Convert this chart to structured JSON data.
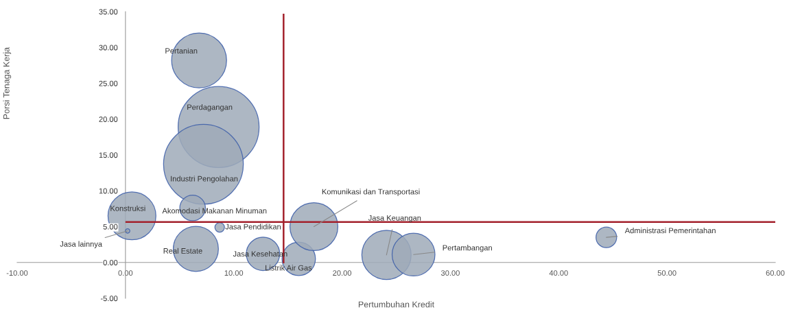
{
  "chart_data": {
    "type": "bubble",
    "xlabel": "Pertumbuhan Kredit",
    "ylabel": "Porsi Tenaga Kerja",
    "x": [
      6.8,
      8.6,
      7.2,
      6.2,
      0.6,
      0.2,
      8.7,
      6.5,
      12.7,
      16.0,
      17.4,
      24.1,
      26.6,
      44.4
    ],
    "values": [
      28.2,
      18.9,
      13.7,
      7.6,
      6.5,
      4.4,
      4.9,
      1.9,
      1.2,
      0.5,
      5.0,
      1.05,
      1.1,
      3.5
    ],
    "sizes": [
      0.46,
      1,
      0.97,
      0.1,
      0.35,
      0.003,
      0.014,
      0.31,
      0.17,
      0.17,
      0.35,
      0.37,
      0.28,
      0.065
    ],
    "value_labels": [
      "Pertanian",
      "Perdagangan",
      "Industri Pengolahan",
      "Akomodasi Makanan Minuman",
      "Konstruksi",
      "Jasa lainnya",
      "Jasa Pendidikan",
      "Real Estate",
      "Jasa Kesehatan",
      "Listrik Air Gas",
      "Komunikasi dan Transportasi",
      "Jasa Keuangan",
      "Pertambangan",
      "Administrasi Pemerintahan"
    ],
    "color": "#9faab9",
    "xlim": [
      -10,
      60
    ],
    "ylim": [
      -5,
      35
    ],
    "xticks": [
      {
        "value": -10,
        "label": "-10.00"
      },
      {
        "value": 0,
        "label": "0.00"
      },
      {
        "value": 10,
        "label": "10.00"
      },
      {
        "value": 20,
        "label": "20.00"
      },
      {
        "value": 30,
        "label": "30.00"
      },
      {
        "value": 40,
        "label": "40.00"
      },
      {
        "value": 50,
        "label": "50.00"
      },
      {
        "value": 60,
        "label": "60.00"
      }
    ],
    "yticks": [
      {
        "value": -5,
        "label": "-5.00"
      },
      {
        "value": 0,
        "label": "0.00"
      },
      {
        "value": 5,
        "label": "5.00"
      },
      {
        "value": 10,
        "label": "10.00"
      },
      {
        "value": 15,
        "label": "15.00"
      },
      {
        "value": 20,
        "label": "20.00"
      },
      {
        "value": 25,
        "label": "25.00"
      },
      {
        "value": 30,
        "label": "30.00"
      },
      {
        "value": 35,
        "label": "35.00"
      }
    ],
    "ref_lines": [
      {
        "axis": "x",
        "value": 14.6,
        "color": "#a3202b"
      },
      {
        "axis": "y",
        "value": 5.65,
        "color": "#a3202b"
      }
    ],
    "grid": false,
    "legend": false,
    "marker": "circle"
  }
}
